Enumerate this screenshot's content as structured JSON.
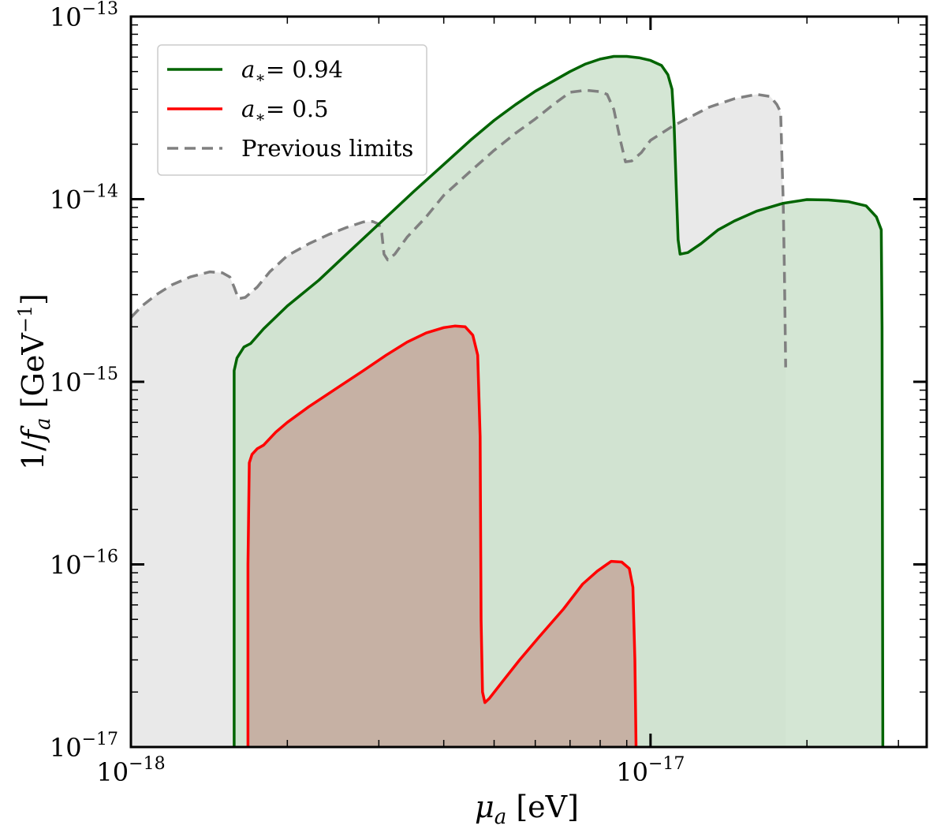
{
  "chart_data": {
    "type": "area",
    "xscale": "log",
    "yscale": "log",
    "xlim": [
      1e-18,
      3.4e-17
    ],
    "ylim": [
      1e-17,
      1e-13
    ],
    "xlabel_base": "μ",
    "xlabel_sub": "a",
    "xlabel_unit": " [eV]",
    "ylabel_prefix": "1/",
    "ylabel_f": "f",
    "ylabel_sub": "a",
    "ylabel_unit": " [GeV",
    "ylabel_exp": "−1",
    "ylabel_close": "]",
    "x_ticks": [
      {
        "value": 1e-18,
        "base": "10",
        "exp": "−18"
      },
      {
        "value": 1e-17,
        "base": "10",
        "exp": "−17"
      }
    ],
    "y_ticks": [
      {
        "value": 1e-17,
        "base": "10",
        "exp": "−17"
      },
      {
        "value": 1e-16,
        "base": "10",
        "exp": "−16"
      },
      {
        "value": 1e-15,
        "base": "10",
        "exp": "−15"
      },
      {
        "value": 1e-14,
        "base": "10",
        "exp": "−14"
      },
      {
        "value": 1e-13,
        "base": "10",
        "exp": "−13"
      }
    ],
    "legend_position": "top-left",
    "series": [
      {
        "name_sym": "a",
        "name_sub": "∗",
        "name_rest": "= 0.94",
        "color": "#006400",
        "fill": "#cde2cd",
        "dash": "none",
        "points": [
          [
            1.58e-18,
            1e-17
          ],
          [
            1.58e-18,
            1.15e-15
          ],
          [
            1.6e-18,
            1.35e-15
          ],
          [
            1.65e-18,
            1.55e-15
          ],
          [
            1.7e-18,
            1.62e-15
          ],
          [
            1.8e-18,
            1.95e-15
          ],
          [
            2e-18,
            2.6e-15
          ],
          [
            2.3e-18,
            3.6e-15
          ],
          [
            2.6e-18,
            5e-15
          ],
          [
            3e-18,
            7.3e-15
          ],
          [
            3.5e-18,
            1.1e-14
          ],
          [
            4e-18,
            1.55e-14
          ],
          [
            4.5e-18,
            2.1e-14
          ],
          [
            5e-18,
            2.7e-14
          ],
          [
            5.5e-18,
            3.3e-14
          ],
          [
            6e-18,
            3.9e-14
          ],
          [
            7e-18,
            5e-14
          ],
          [
            7.5e-18,
            5.5e-14
          ],
          [
            8e-18,
            5.85e-14
          ],
          [
            8.5e-18,
            6.05e-14
          ],
          [
            9e-18,
            6.05e-14
          ],
          [
            9.5e-18,
            5.95e-14
          ],
          [
            1e-17,
            5.75e-14
          ],
          [
            1.05e-17,
            5.4e-14
          ],
          [
            1.08e-17,
            4.8e-14
          ],
          [
            1.1e-17,
            4e-14
          ],
          [
            1.11e-17,
            2.6e-14
          ],
          [
            1.12e-17,
            1.2e-14
          ],
          [
            1.13e-17,
            6e-15
          ],
          [
            1.14e-17,
            5e-15
          ],
          [
            1.18e-17,
            5.1e-15
          ],
          [
            1.25e-17,
            5.7e-15
          ],
          [
            1.35e-17,
            6.8e-15
          ],
          [
            1.45e-17,
            7.6e-15
          ],
          [
            1.6e-17,
            8.6e-15
          ],
          [
            1.8e-17,
            9.5e-15
          ],
          [
            2e-17,
            9.95e-15
          ],
          [
            2.2e-17,
            9.9e-15
          ],
          [
            2.4e-17,
            9.7e-15
          ],
          [
            2.6e-17,
            9.2e-15
          ],
          [
            2.72e-17,
            8e-15
          ],
          [
            2.78e-17,
            6.8e-15
          ],
          [
            2.79e-17,
            2e-15
          ],
          [
            2.8e-17,
            1e-17
          ]
        ]
      },
      {
        "name_sym": "a",
        "name_sub": "∗",
        "name_rest": "= 0.5",
        "color": "#ff0000",
        "fill": "#c4a89c",
        "dash": "none",
        "points": [
          [
            1.68e-18,
            1e-17
          ],
          [
            1.68e-18,
            1e-16
          ],
          [
            1.69e-18,
            3.6e-16
          ],
          [
            1.71e-18,
            4e-16
          ],
          [
            1.75e-18,
            4.3e-16
          ],
          [
            1.8e-18,
            4.5e-16
          ],
          [
            1.9e-18,
            5.3e-16
          ],
          [
            2e-18,
            6e-16
          ],
          [
            2.2e-18,
            7.3e-16
          ],
          [
            2.5e-18,
            9.3e-16
          ],
          [
            2.8e-18,
            1.15e-15
          ],
          [
            3.1e-18,
            1.4e-15
          ],
          [
            3.4e-18,
            1.65e-15
          ],
          [
            3.7e-18,
            1.85e-15
          ],
          [
            4e-18,
            1.98e-15
          ],
          [
            4.2e-18,
            2.02e-15
          ],
          [
            4.4e-18,
            2e-15
          ],
          [
            4.55e-18,
            1.8e-15
          ],
          [
            4.65e-18,
            1.4e-15
          ],
          [
            4.7e-18,
            5e-16
          ],
          [
            4.72e-18,
            5e-17
          ],
          [
            4.75e-18,
            2e-17
          ],
          [
            4.8e-18,
            1.75e-17
          ],
          [
            4.9e-18,
            1.85e-17
          ],
          [
            5.2e-18,
            2.3e-17
          ],
          [
            5.6e-18,
            3e-17
          ],
          [
            6.1e-18,
            4e-17
          ],
          [
            6.8e-18,
            5.7e-17
          ],
          [
            7.4e-18,
            7.8e-17
          ],
          [
            7.9e-18,
            9.2e-17
          ],
          [
            8.4e-18,
            1.04e-16
          ],
          [
            8.8e-18,
            1.03e-16
          ],
          [
            9.1e-18,
            9.5e-17
          ],
          [
            9.25e-18,
            7.5e-17
          ],
          [
            9.33e-18,
            3e-17
          ],
          [
            9.38e-18,
            1e-17
          ]
        ]
      },
      {
        "name_sym": "",
        "name_sub": "",
        "name_rest": "Previous limits",
        "color": "#808080",
        "fill": "#e5e5e5",
        "dash": "14,8",
        "points": [
          [
            1e-18,
            2.25e-15
          ],
          [
            1.05e-18,
            2.6e-15
          ],
          [
            1.12e-18,
            3e-15
          ],
          [
            1.2e-18,
            3.4e-15
          ],
          [
            1.3e-18,
            3.75e-15
          ],
          [
            1.42e-18,
            4e-15
          ],
          [
            1.5e-18,
            3.95e-15
          ],
          [
            1.55e-18,
            3.75e-15
          ],
          [
            1.58e-18,
            3.3e-15
          ],
          [
            1.61e-18,
            2.85e-15
          ],
          [
            1.66e-18,
            2.9e-15
          ],
          [
            1.75e-18,
            3.3e-15
          ],
          [
            1.85e-18,
            4e-15
          ],
          [
            2e-18,
            4.9e-15
          ],
          [
            2.2e-18,
            5.7e-15
          ],
          [
            2.4e-18,
            6.4e-15
          ],
          [
            2.6e-18,
            7e-15
          ],
          [
            2.8e-18,
            7.5e-15
          ],
          [
            2.92e-18,
            7.55e-15
          ],
          [
            3e-18,
            7.3e-15
          ],
          [
            3.04e-18,
            6.5e-15
          ],
          [
            3.07e-18,
            5e-15
          ],
          [
            3.12e-18,
            4.65e-15
          ],
          [
            3.22e-18,
            5e-15
          ],
          [
            3.4e-18,
            6.2e-15
          ],
          [
            3.7e-18,
            8e-15
          ],
          [
            4e-18,
            1.05e-14
          ],
          [
            4.5e-18,
            1.42e-14
          ],
          [
            5e-18,
            1.85e-14
          ],
          [
            5.5e-18,
            2.3e-14
          ],
          [
            6e-18,
            2.75e-14
          ],
          [
            6.5e-18,
            3.3e-14
          ],
          [
            7e-18,
            3.85e-14
          ],
          [
            7.5e-18,
            3.95e-14
          ],
          [
            8e-18,
            3.88e-14
          ],
          [
            8.25e-18,
            3.75e-14
          ],
          [
            8.5e-18,
            3.1e-14
          ],
          [
            8.75e-18,
            2.1e-14
          ],
          [
            8.95e-18,
            1.6e-14
          ],
          [
            9.2e-18,
            1.62e-14
          ],
          [
            9.6e-18,
            1.8e-14
          ],
          [
            1e-17,
            2.1e-14
          ],
          [
            1.1e-17,
            2.5e-14
          ],
          [
            1.2e-17,
            2.85e-14
          ],
          [
            1.3e-17,
            3.2e-14
          ],
          [
            1.45e-17,
            3.55e-14
          ],
          [
            1.6e-17,
            3.75e-14
          ],
          [
            1.7e-17,
            3.65e-14
          ],
          [
            1.75e-17,
            3.3e-14
          ],
          [
            1.78e-17,
            3e-14
          ],
          [
            1.8e-17,
            1e-14
          ],
          [
            1.81e-17,
            4e-15
          ],
          [
            1.82e-17,
            1.2e-15
          ]
        ]
      }
    ]
  }
}
